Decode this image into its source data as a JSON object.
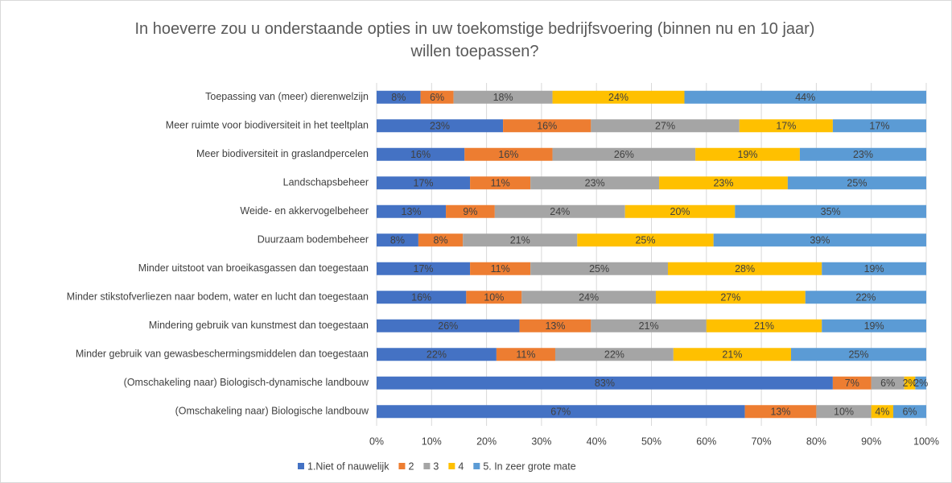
{
  "chart_data": {
    "type": "stacked-bar-horizontal",
    "title": "In hoeverre zou u onderstaande opties in uw toekomstige bedrijfsvoering (binnen nu en 10 jaar) willen toepassen?",
    "categories": [
      "Toepassing van (meer) dierenwelzijn",
      "Meer ruimte voor biodiversiteit in het teeltplan",
      "Meer biodiversiteit in graslandpercelen",
      "Landschapsbeheer",
      "Weide- en akkervogelbeheer",
      "Duurzaam bodembeheer",
      "Minder uitstoot van broeikasgassen dan toegestaan",
      "Minder stikstofverliezen naar bodem, water en lucht dan toegestaan",
      "Mindering gebruik van kunstmest dan toegestaan",
      "Minder gebruik van gewasbeschermingsmiddelen dan toegestaan",
      "(Omschakeling naar) Biologisch-dynamische landbouw",
      "(Omschakeling naar) Biologische landbouw"
    ],
    "series": [
      {
        "name": "1.Niet of nauwelijk",
        "color": "#4472c4",
        "values": [
          8,
          23,
          16,
          17,
          12.6,
          7.6,
          17,
          16.3,
          26,
          21.8,
          83,
          67
        ],
        "value_labels": [
          "8%",
          "23%",
          "16%",
          "17%",
          "13%",
          "8%",
          "17%",
          "16%",
          "26%",
          "22%",
          "83%",
          "67%"
        ]
      },
      {
        "name": "2",
        "color": "#ed7d31",
        "values": [
          6,
          16,
          16,
          11,
          8.9,
          8.1,
          11,
          10.1,
          13,
          10.7,
          7,
          13
        ],
        "value_labels": [
          "6%",
          "16%",
          "16%",
          "11%",
          "9%",
          "8%",
          "11%",
          "10%",
          "13%",
          "11%",
          "7%",
          "13%"
        ]
      },
      {
        "name": "3",
        "color": "#a5a5a5",
        "values": [
          18,
          27,
          26,
          23.4,
          23.7,
          20.8,
          25,
          24.4,
          21,
          21.5,
          6,
          10
        ],
        "value_labels": [
          "18%",
          "27%",
          "26%",
          "23%",
          "24%",
          "21%",
          "25%",
          "24%",
          "21%",
          "22%",
          "6%",
          "10%"
        ]
      },
      {
        "name": "4",
        "color": "#ffc000",
        "values": [
          24,
          17,
          19,
          23.4,
          20,
          24.8,
          28,
          27.2,
          21,
          21.4,
          2,
          4
        ],
        "value_labels": [
          "24%",
          "17%",
          "19%",
          "23%",
          "20%",
          "25%",
          "28%",
          "27%",
          "21%",
          "21%",
          "2%",
          "4%"
        ]
      },
      {
        "name": "5. In zeer grote mate",
        "color": "#5b9bd5",
        "values": [
          44,
          17,
          23,
          25.2,
          34.8,
          38.7,
          19,
          22,
          19,
          24.6,
          2,
          6
        ],
        "value_labels": [
          "44%",
          "17%",
          "23%",
          "25%",
          "35%",
          "39%",
          "19%",
          "22%",
          "19%",
          "25%",
          "2%",
          "6%"
        ]
      }
    ],
    "xlim": [
      0,
      100
    ],
    "xticks": [
      {
        "value": 0,
        "label": "0%"
      },
      {
        "value": 10,
        "label": "10%"
      },
      {
        "value": 20,
        "label": "20%"
      },
      {
        "value": 30,
        "label": "30%"
      },
      {
        "value": 40,
        "label": "40%"
      },
      {
        "value": 50,
        "label": "50%"
      },
      {
        "value": 60,
        "label": "60%"
      },
      {
        "value": 70,
        "label": "70%"
      },
      {
        "value": 80,
        "label": "80%"
      },
      {
        "value": 90,
        "label": "90%"
      },
      {
        "value": 100,
        "label": "100%"
      }
    ],
    "grid": true,
    "legend": "bottom"
  }
}
